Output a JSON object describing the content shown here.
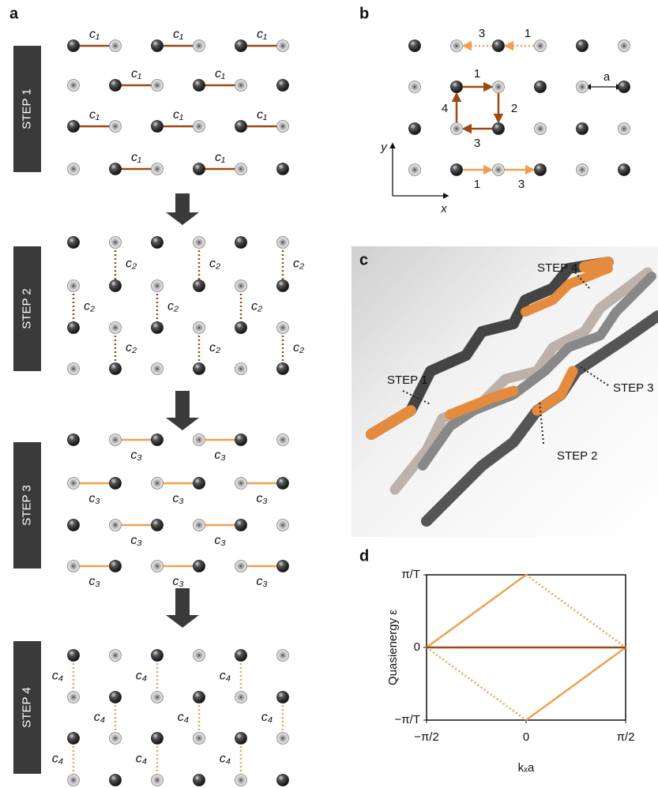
{
  "panels": [
    "a",
    "b",
    "c",
    "d"
  ],
  "panel_a": {
    "steps": [
      "STEP 1",
      "STEP 2",
      "STEP 3",
      "STEP 4"
    ],
    "couplings": [
      "c₁",
      "c₂",
      "c₃",
      "c₄"
    ]
  },
  "panel_b": {
    "hop_labels": [
      "3",
      "1",
      "1",
      "2",
      "3",
      "4",
      "1",
      "3"
    ],
    "lattice_constant": "a",
    "x_axis": "x",
    "y_axis": "y"
  },
  "panel_c": {
    "labels": [
      "STEP 4",
      "STEP 1",
      "STEP 3",
      "STEP 2"
    ]
  },
  "chart_data": {
    "type": "line",
    "xlabel": "kₓa",
    "ylabel": "Quasienergy ε",
    "xlim": [
      -0.5,
      0.5
    ],
    "ylim": [
      -1,
      1
    ],
    "xticks": [
      {
        "value": -0.5,
        "label": "−π/2"
      },
      0,
      {
        "value": 0.5,
        "label": "π/2"
      }
    ],
    "yticks": [
      {
        "value": -1,
        "label": "−π/T"
      },
      0,
      {
        "value": 1,
        "label": "π/T"
      }
    ],
    "grid": false,
    "series": [
      {
        "color": "#f0a050",
        "style": "solid",
        "x": [
          -0.5,
          0
        ],
        "values": [
          0,
          1
        ]
      },
      {
        "color": "#f0a050",
        "style": "solid",
        "x": [
          0,
          0.5
        ],
        "values": [
          -1,
          0
        ]
      },
      {
        "color": "#f0a050",
        "style": "dotted",
        "x": [
          0,
          0.5
        ],
        "values": [
          1,
          0
        ]
      },
      {
        "color": "#f0a050",
        "style": "dotted",
        "x": [
          -0.5,
          0
        ],
        "values": [
          0,
          -1
        ]
      },
      {
        "color": "#9a4a12",
        "style": "solid",
        "x": [
          -0.5,
          0.5
        ],
        "values": [
          0,
          0
        ]
      }
    ]
  }
}
